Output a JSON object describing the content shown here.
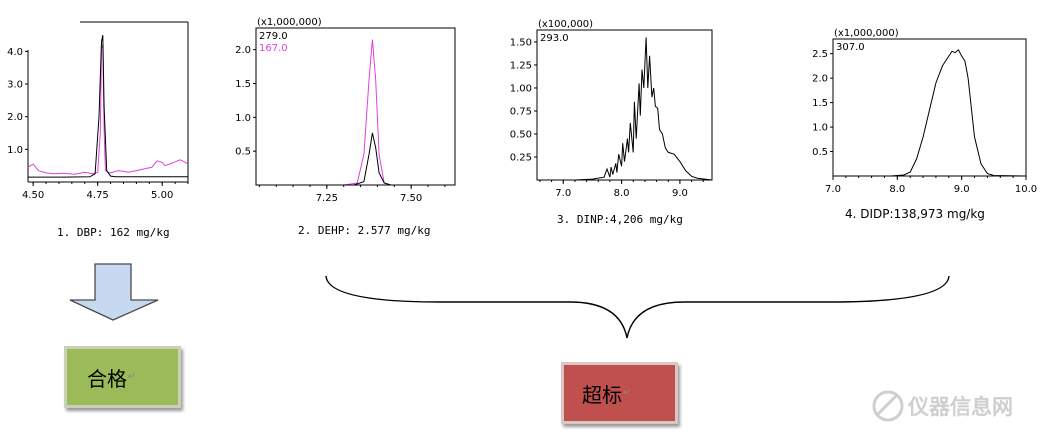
{
  "chart_data": [
    {
      "type": "line",
      "xlim": [
        4.48,
        5.1
      ],
      "ylim": [
        0,
        4.9
      ],
      "x_ticks": [
        "4.50",
        "4.75",
        "5.00"
      ],
      "y_ticks": [
        "1.0",
        "2.0",
        "3.0",
        "4.0"
      ],
      "series": [
        {
          "color": "#e040e0",
          "x": [
            4.48,
            4.5,
            4.52,
            4.55,
            4.58,
            4.62,
            4.66,
            4.7,
            4.73,
            4.75,
            4.76,
            4.765,
            4.77,
            4.775,
            4.78,
            4.79,
            4.8,
            4.83,
            4.87,
            4.9,
            4.93,
            4.96,
            4.98,
            5.0,
            5.01,
            5.03,
            5.05,
            5.07,
            5.09,
            5.1
          ],
          "y": [
            0.45,
            0.55,
            0.35,
            0.28,
            0.25,
            0.27,
            0.24,
            0.3,
            0.25,
            0.3,
            1.5,
            4.1,
            4.2,
            1.6,
            0.35,
            0.3,
            0.28,
            0.35,
            0.3,
            0.35,
            0.4,
            0.45,
            0.65,
            0.6,
            0.5,
            0.55,
            0.62,
            0.68,
            0.6,
            0.55
          ]
        },
        {
          "color": "#000000",
          "x": [
            4.48,
            4.62,
            4.72,
            4.74,
            4.755,
            4.765,
            4.77,
            4.775,
            4.785,
            4.8,
            4.82,
            5.1
          ],
          "y": [
            0.15,
            0.15,
            0.16,
            0.25,
            2.0,
            4.3,
            4.5,
            2.3,
            0.35,
            0.18,
            0.16,
            0.16
          ]
        }
      ]
    },
    {
      "type": "line",
      "multiplier": "(x1,000,000)",
      "labels": [
        "279.0",
        "167.0"
      ],
      "label_colors": [
        "#000000",
        "#e040e0"
      ],
      "xlim": [
        7.04,
        7.63
      ],
      "ylim": [
        0,
        2.32
      ],
      "x_ticks": [
        "7.25",
        "7.50"
      ],
      "y_ticks": [
        "0.5",
        "1.0",
        "1.5",
        "2.0"
      ],
      "series": [
        {
          "color": "#e040e0",
          "x": [
            7.04,
            7.3,
            7.34,
            7.36,
            7.375,
            7.385,
            7.395,
            7.405,
            7.42,
            7.44,
            7.63
          ],
          "y": [
            0,
            0,
            0.03,
            0.45,
            1.55,
            2.15,
            1.55,
            0.45,
            0.03,
            0,
            0
          ]
        },
        {
          "color": "#000000",
          "x": [
            7.04,
            7.33,
            7.36,
            7.375,
            7.385,
            7.395,
            7.405,
            7.42,
            7.44,
            7.63
          ],
          "y": [
            0,
            0,
            0.05,
            0.45,
            0.77,
            0.55,
            0.18,
            0.03,
            0,
            0
          ]
        }
      ]
    },
    {
      "type": "line",
      "multiplier": "(x100,000)",
      "labels": [
        "293.0"
      ],
      "label_colors": [
        "#000000"
      ],
      "xlim": [
        6.55,
        9.55
      ],
      "ylim": [
        0,
        1.63
      ],
      "x_ticks": [
        "7.0",
        "8.0",
        "9.0"
      ],
      "y_ticks": [
        "0.25",
        "0.50",
        "0.75",
        "1.00",
        "1.25",
        "1.50"
      ],
      "series": [
        {
          "color": "#000000",
          "x": [
            6.55,
            7.2,
            7.5,
            7.7,
            7.75,
            7.8,
            7.82,
            7.85,
            7.9,
            7.92,
            7.95,
            8.0,
            8.02,
            8.05,
            8.1,
            8.12,
            8.15,
            8.2,
            8.22,
            8.25,
            8.3,
            8.32,
            8.35,
            8.38,
            8.42,
            8.45,
            8.48,
            8.52,
            8.55,
            8.58,
            8.62,
            8.65,
            8.7,
            8.75,
            8.8,
            8.9,
            9.0,
            9.1,
            9.2,
            9.3,
            9.55
          ],
          "y": [
            0,
            0,
            0.01,
            0.03,
            0.12,
            0.03,
            0.14,
            0.06,
            0.18,
            0.08,
            0.28,
            0.15,
            0.4,
            0.2,
            0.45,
            0.3,
            0.62,
            0.3,
            0.85,
            0.45,
            1.05,
            0.7,
            1.2,
            1.0,
            1.55,
            1.0,
            1.35,
            0.9,
            1.0,
            0.8,
            0.78,
            0.55,
            0.5,
            0.35,
            0.3,
            0.28,
            0.2,
            0.1,
            0.04,
            0.02,
            0
          ]
        }
      ]
    },
    {
      "type": "line",
      "multiplier": "(x1,000,000)",
      "labels": [
        "307.0"
      ],
      "label_colors": [
        "#000000"
      ],
      "xlim": [
        7.0,
        10.0
      ],
      "ylim": [
        0,
        2.8
      ],
      "x_ticks": [
        "7.0",
        "8.0",
        "9.0",
        "10.0"
      ],
      "y_ticks": [
        "0.5",
        "1.0",
        "1.5",
        "2.0",
        "2.5"
      ],
      "series": [
        {
          "color": "#000000",
          "x": [
            7.0,
            7.9,
            8.1,
            8.2,
            8.3,
            8.4,
            8.5,
            8.6,
            8.7,
            8.8,
            8.85,
            8.9,
            8.95,
            9.0,
            9.05,
            9.1,
            9.15,
            9.2,
            9.3,
            9.4,
            9.5,
            10.0
          ],
          "y": [
            0,
            0,
            0.02,
            0.08,
            0.35,
            0.8,
            1.35,
            1.9,
            2.25,
            2.45,
            2.55,
            2.52,
            2.58,
            2.45,
            2.35,
            2.0,
            1.4,
            0.8,
            0.25,
            0.05,
            0.01,
            0
          ]
        }
      ]
    }
  ],
  "captions": [
    "1. DBP: 162 mg/kg",
    "2. DEHP: 2.577 mg/kg",
    "3. DINP:4,206 mg/kg",
    "4. DIDP:138,973 mg/kg"
  ],
  "verdicts": {
    "pass": "合格",
    "fail": "超标",
    "mark": "↵"
  },
  "watermark": "仪器信息网",
  "colors": {
    "pass_box": "#9bbb59",
    "fail_box": "#c0504d",
    "arrow": "#c6d9f1",
    "magenta": "#e040e0"
  }
}
